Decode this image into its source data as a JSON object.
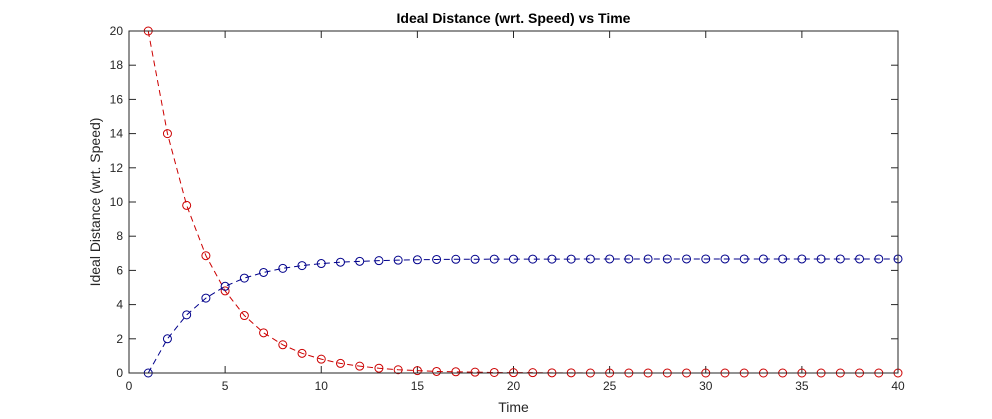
{
  "chart_data": {
    "type": "line",
    "title": "Ideal Distance (wrt. Speed) vs Time",
    "xlabel": "Time",
    "ylabel": "Ideal Distance (wrt. Speed)",
    "xlim": [
      0,
      40
    ],
    "ylim": [
      0,
      20
    ],
    "xticks": [
      0,
      5,
      10,
      15,
      20,
      25,
      30,
      35,
      40
    ],
    "yticks": [
      0,
      2,
      4,
      6,
      8,
      10,
      12,
      14,
      16,
      18,
      20
    ],
    "grid": false,
    "legend": "none",
    "x": [
      1,
      2,
      3,
      4,
      5,
      6,
      7,
      8,
      9,
      10,
      11,
      12,
      13,
      14,
      15,
      16,
      17,
      18,
      19,
      20,
      21,
      22,
      23,
      24,
      25,
      26,
      27,
      28,
      29,
      30,
      31,
      32,
      33,
      34,
      35,
      36,
      37,
      38,
      39,
      40
    ],
    "series": [
      {
        "color": "#cc0000",
        "line_style": "dashed",
        "marker": "circle",
        "values": [
          20.0,
          14.0,
          9.8,
          6.86,
          4.8,
          3.36,
          2.35,
          1.65,
          1.15,
          0.81,
          0.56,
          0.4,
          0.28,
          0.19,
          0.14,
          0.09,
          0.07,
          0.05,
          0.03,
          0.02,
          0.02,
          0.01,
          0.01,
          0.0,
          0.0,
          0.0,
          0.0,
          0.0,
          0.0,
          0.0,
          0.0,
          0.0,
          0.0,
          0.0,
          0.0,
          0.0,
          0.0,
          0.0,
          0.0,
          0.0
        ]
      },
      {
        "color": "#00008b",
        "line_style": "dashed",
        "marker": "circle",
        "values": [
          0.0,
          2.0,
          3.4,
          4.38,
          5.07,
          5.55,
          5.88,
          6.12,
          6.28,
          6.4,
          6.48,
          6.53,
          6.57,
          6.6,
          6.62,
          6.64,
          6.65,
          6.65,
          6.66,
          6.66,
          6.66,
          6.66,
          6.66,
          6.67,
          6.67,
          6.67,
          6.67,
          6.67,
          6.67,
          6.67,
          6.67,
          6.67,
          6.67,
          6.67,
          6.67,
          6.67,
          6.67,
          6.67,
          6.67,
          6.67
        ]
      }
    ]
  }
}
